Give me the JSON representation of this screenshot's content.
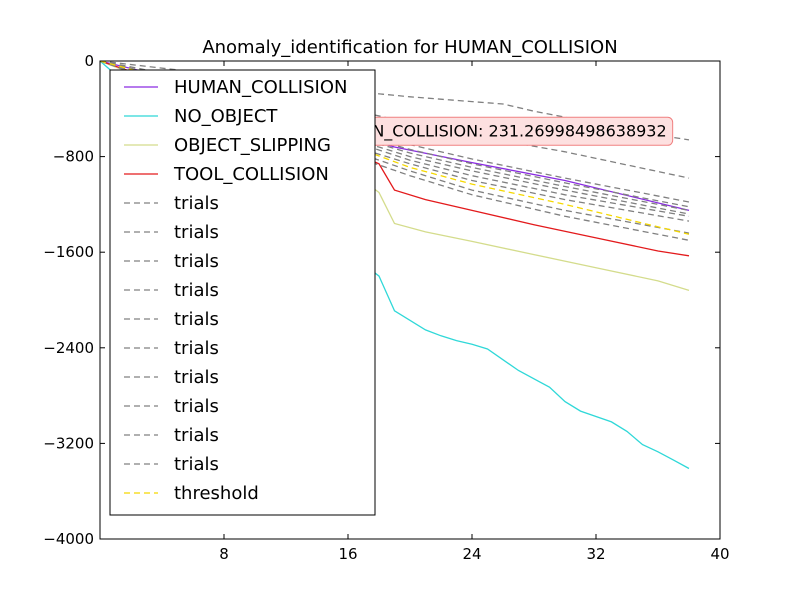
{
  "chart_data": {
    "type": "line",
    "title": "Anomaly_identification for HUMAN_COLLISION",
    "xlabel": "",
    "ylabel": "",
    "xlim": [
      0,
      40
    ],
    "ylim": [
      -4000,
      0
    ],
    "xticks": [
      "8",
      "16",
      "24",
      "32",
      "40"
    ],
    "yticks": [
      "0",
      "−800",
      "−1600",
      "−2400",
      "−3200",
      "−4000"
    ],
    "grid": false,
    "legend_position": "upper-left",
    "annotation": {
      "text": "HUMAN_COLLISION: 231.26998498638932",
      "x": 25.5,
      "y": -580
    },
    "series": [
      {
        "name": "HUMAN_COLLISION",
        "color": "#8a2be2",
        "style": "solid",
        "x": [
          0,
          8,
          16,
          18,
          19,
          24,
          30,
          38
        ],
        "y": [
          0,
          -250,
          -560,
          -680,
          -720,
          -850,
          -1000,
          -1250
        ]
      },
      {
        "name": "NO_OBJECT",
        "color": "#2fd8d8",
        "style": "solid",
        "x": [
          0,
          8,
          16,
          18,
          19,
          21,
          22,
          23,
          24,
          25,
          27,
          29,
          30,
          31,
          33,
          34,
          35,
          36,
          37,
          38
        ],
        "y": [
          0,
          -900,
          -1600,
          -1800,
          -2090,
          -2250,
          -2300,
          -2340,
          -2370,
          -2410,
          -2590,
          -2730,
          -2850,
          -2930,
          -3020,
          -3100,
          -3210,
          -3270,
          -3340,
          -3410
        ]
      },
      {
        "name": "OBJECT_SLIPPING",
        "color": "#d4dc8c",
        "style": "solid",
        "x": [
          0,
          8,
          16,
          18,
          19,
          21,
          24,
          28,
          32,
          36,
          38
        ],
        "y": [
          0,
          -400,
          -900,
          -1100,
          -1360,
          -1430,
          -1510,
          -1620,
          -1730,
          -1840,
          -1920
        ]
      },
      {
        "name": "TOOL_COLLISION",
        "color": "#e31a1c",
        "style": "solid",
        "x": [
          0,
          8,
          16,
          18,
          19,
          21,
          24,
          28,
          32,
          36,
          38
        ],
        "y": [
          0,
          -350,
          -750,
          -860,
          -1080,
          -1160,
          -1250,
          -1370,
          -1480,
          -1590,
          -1630
        ]
      },
      {
        "name": "trials",
        "color": "#808080",
        "style": "dashed",
        "x": [
          0,
          8,
          16,
          20,
          24,
          26,
          28,
          30,
          34,
          38
        ],
        "y": [
          0,
          -120,
          -250,
          -300,
          -340,
          -360,
          -420,
          -470,
          -580,
          -660
        ]
      },
      {
        "name": "trials",
        "color": "#808080",
        "style": "dashed",
        "x": [
          0,
          8,
          16,
          20,
          24,
          30,
          38
        ],
        "y": [
          0,
          -200,
          -400,
          -520,
          -620,
          -760,
          -980
        ]
      },
      {
        "name": "trials",
        "color": "#808080",
        "style": "dashed",
        "x": [
          0,
          8,
          16,
          20,
          24,
          30,
          38
        ],
        "y": [
          0,
          -250,
          -560,
          -700,
          -820,
          -980,
          -1180
        ]
      },
      {
        "name": "trials",
        "color": "#808080",
        "style": "dashed",
        "x": [
          0,
          8,
          16,
          20,
          24,
          30,
          38
        ],
        "y": [
          0,
          -270,
          -600,
          -740,
          -860,
          -1020,
          -1220
        ]
      },
      {
        "name": "trials",
        "color": "#808080",
        "style": "dashed",
        "x": [
          0,
          8,
          16,
          20,
          24,
          30,
          38
        ],
        "y": [
          0,
          -300,
          -640,
          -800,
          -920,
          -1080,
          -1280
        ]
      },
      {
        "name": "trials",
        "color": "#808080",
        "style": "dashed",
        "x": [
          0,
          8,
          16,
          20,
          24,
          30,
          38
        ],
        "y": [
          0,
          -320,
          -700,
          -860,
          -1000,
          -1160,
          -1340
        ]
      },
      {
        "name": "trials",
        "color": "#808080",
        "style": "dashed",
        "x": [
          0,
          8,
          16,
          20,
          24,
          30,
          38
        ],
        "y": [
          0,
          -350,
          -740,
          -920,
          -1080,
          -1250,
          -1440
        ]
      },
      {
        "name": "trials",
        "color": "#808080",
        "style": "dashed",
        "x": [
          0,
          8,
          16,
          20,
          24,
          30,
          38
        ],
        "y": [
          0,
          -370,
          -780,
          -960,
          -1120,
          -1300,
          -1500
        ]
      },
      {
        "name": "trials",
        "color": "#808080",
        "style": "dashed",
        "x": [
          0,
          8,
          16,
          20,
          24,
          30,
          38
        ],
        "y": [
          0,
          -290,
          -620,
          -770,
          -890,
          -1050,
          -1250
        ]
      },
      {
        "name": "trials",
        "color": "#808080",
        "style": "dashed",
        "x": [
          0,
          8,
          16,
          20,
          24,
          30,
          38
        ],
        "y": [
          0,
          -310,
          -660,
          -830,
          -960,
          -1120,
          -1300
        ]
      },
      {
        "name": "threshold",
        "color": "#f5d800",
        "style": "dashed",
        "x": [
          0,
          8,
          16,
          20,
          24,
          30,
          38
        ],
        "y": [
          0,
          -280,
          -700,
          -890,
          -1030,
          -1200,
          -1450
        ]
      }
    ]
  }
}
